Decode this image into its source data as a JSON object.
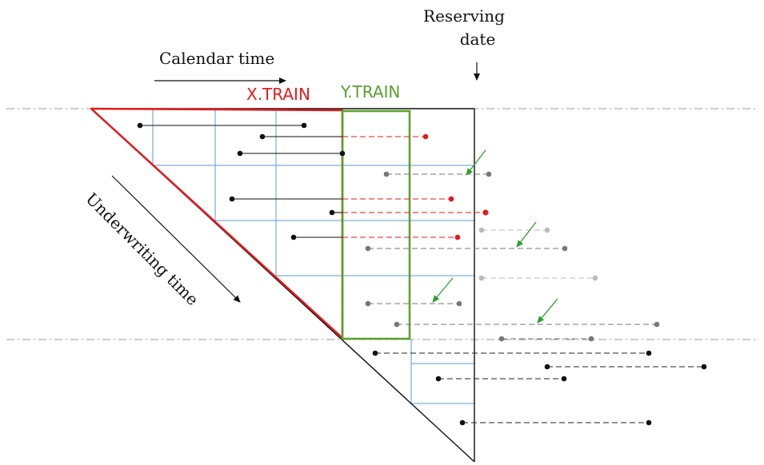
{
  "labels": {
    "calendar_time": "Calendar time",
    "underwriting_time": "Underwriting time",
    "reserving_date_line1": "Reserving",
    "reserving_date_line2": "date",
    "x_train": "X.TRAIN",
    "y_train": "Y.TRAIN"
  },
  "colors": {
    "x_train": "#e41a1c",
    "y_train": "#5aa02c",
    "grid": "#5b9bd5",
    "triangle": "#111111",
    "observed_segment": "#111111",
    "future_segment_red": "#e41a1c",
    "future_segment_gray": "#777777",
    "light_segment": "#bbbbbb",
    "arrow_green": "#2ca02c"
  }
}
